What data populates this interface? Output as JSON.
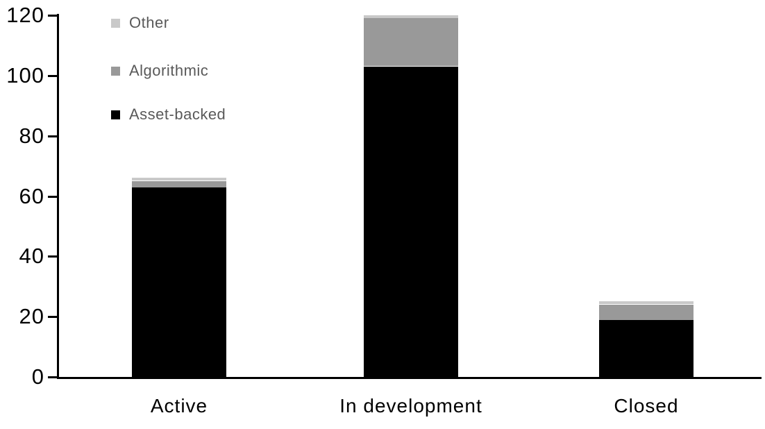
{
  "chart_data": {
    "type": "bar",
    "stacked": true,
    "title": "",
    "xlabel": "",
    "ylabel": "",
    "categories": [
      "Active",
      "In development",
      "Closed"
    ],
    "series": [
      {
        "name": "Asset-backed",
        "color": "#000000",
        "values": [
          63,
          103,
          19
        ]
      },
      {
        "name": "Algorithmic",
        "color": "#999999",
        "values": [
          2,
          16,
          5
        ]
      },
      {
        "name": "Other",
        "color": "#c9c9c9",
        "values": [
          1,
          1,
          1
        ]
      }
    ],
    "stack_totals": [
      66,
      120,
      25
    ],
    "ylim": [
      0,
      120
    ],
    "yticks": [
      "0",
      "20",
      "40",
      "60",
      "80",
      "100",
      "120"
    ],
    "grid": false,
    "legend": {
      "position": "top-left",
      "items": [
        {
          "label": "Other",
          "color": "#c9c9c9"
        },
        {
          "label": "Algorithmic",
          "color": "#999999"
        },
        {
          "label": "Asset-backed",
          "color": "#000000"
        }
      ]
    },
    "colors": {
      "axis": "#000000",
      "tick_label": "#000000",
      "category_label": "#000000",
      "legend_text": "#595959",
      "background": "#ffffff"
    }
  }
}
